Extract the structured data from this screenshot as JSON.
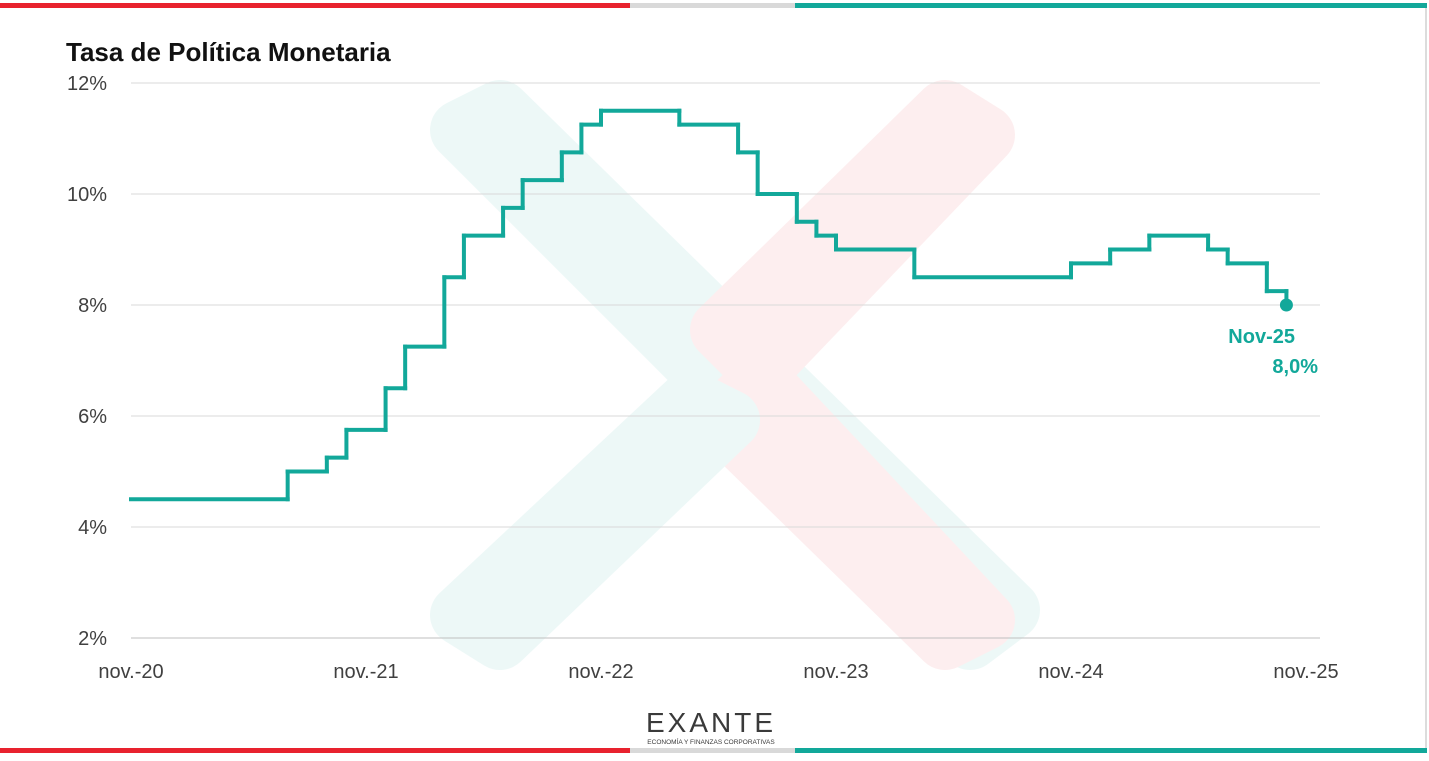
{
  "chart_data": {
    "type": "step",
    "title": "Tasa de Política Monetaria",
    "color": "#12a89a",
    "grid": true,
    "x": [
      "2020-11",
      "2021-07",
      "2021-09",
      "2021-10",
      "2021-12",
      "2022-01",
      "2022-03",
      "2022-04",
      "2022-06",
      "2022-07",
      "2022-09",
      "2022-10",
      "2022-11",
      "2023-03",
      "2023-06",
      "2023-07",
      "2023-09",
      "2023-10",
      "2023-11",
      "2024-03",
      "2024-11",
      "2025-01",
      "2025-03",
      "2025-06",
      "2025-07",
      "2025-09",
      "2025-10"
    ],
    "values": [
      4.5,
      5.0,
      5.25,
      5.75,
      6.5,
      7.25,
      8.5,
      9.25,
      9.75,
      10.25,
      10.75,
      11.25,
      11.5,
      11.25,
      10.75,
      10.0,
      9.5,
      9.25,
      9.0,
      8.5,
      8.75,
      9.0,
      9.25,
      9.0,
      8.75,
      8.25,
      8.0
    ],
    "xlim": [
      "2020-11",
      "2025-11"
    ],
    "xticks": [
      {
        "value": "2020-11",
        "label": "nov.-20"
      },
      {
        "value": "2021-11",
        "label": "nov.-21"
      },
      {
        "value": "2022-11",
        "label": "nov.-22"
      },
      {
        "value": "2023-11",
        "label": "nov.-23"
      },
      {
        "value": "2024-11",
        "label": "nov.-24"
      },
      {
        "value": "2025-11",
        "label": "nov.-25"
      }
    ],
    "ylim": [
      2,
      12
    ],
    "yticks": [
      {
        "value": 2,
        "label": "2%"
      },
      {
        "value": 4,
        "label": "4%"
      },
      {
        "value": 6,
        "label": "6%"
      },
      {
        "value": 8,
        "label": "8%"
      },
      {
        "value": 10,
        "label": "10%"
      },
      {
        "value": 12,
        "label": "12%"
      }
    ],
    "annotations": [
      "Nov-25",
      "8,0%"
    ]
  },
  "logo": {
    "name": "EXANTE",
    "tagline": "ECONOMÍA Y FINANZAS CORPORATIVAS"
  }
}
